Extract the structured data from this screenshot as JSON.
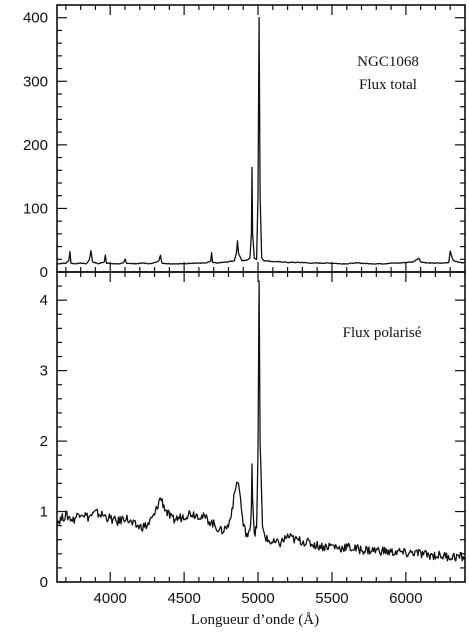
{
  "chart_data": [
    {
      "type": "line",
      "panel": "top",
      "annotation": [
        "NGC1068",
        "Flux total"
      ],
      "xlabel": "",
      "ylabel": "",
      "xlim": [
        3640,
        6400
      ],
      "ylim": [
        0,
        420
      ],
      "x_ticks": [
        4000,
        4500,
        5000,
        5500,
        6000
      ],
      "y_ticks": [
        0,
        100,
        200,
        300,
        400
      ],
      "y_tick_labels": [
        "0",
        "100",
        "200",
        "300",
        "400"
      ],
      "series": [
        {
          "x": [
            3640,
            3700,
            3720,
            3727,
            3735,
            3760,
            3800,
            3840,
            3860,
            3869,
            3880,
            3920,
            3960,
            3967,
            3975,
            4020,
            4060,
            4090,
            4101,
            4110,
            4160,
            4220,
            4280,
            4330,
            4340,
            4350,
            4400,
            4450,
            4500,
            4550,
            4600,
            4650,
            4680,
            4686,
            4692,
            4720,
            4760,
            4800,
            4840,
            4855,
            4861,
            4868,
            4890,
            4920,
            4945,
            4955,
            4959,
            4963,
            4975,
            4990,
            5000,
            5007,
            5014,
            5025,
            5040,
            5080,
            5120,
            5160,
            5200,
            5250,
            5300,
            5350,
            5400,
            5450,
            5500,
            5550,
            5600,
            5650,
            5700,
            5750,
            5800,
            5850,
            5900,
            5950,
            6000,
            6050,
            6087,
            6100,
            6150,
            6200,
            6250,
            6290,
            6300,
            6320,
            6360,
            6400
          ],
          "y": [
            13,
            14,
            18,
            32,
            14,
            13,
            14,
            13,
            20,
            34,
            16,
            13,
            16,
            27,
            14,
            13,
            13,
            14,
            20,
            14,
            13,
            14,
            13,
            18,
            26,
            14,
            13,
            13,
            13,
            14,
            14,
            14,
            17,
            30,
            15,
            14,
            15,
            16,
            18,
            32,
            49,
            30,
            18,
            18,
            22,
            60,
            165,
            60,
            22,
            20,
            120,
            400,
            120,
            22,
            18,
            17,
            16,
            16,
            15,
            15,
            15,
            14,
            14,
            14,
            14,
            13,
            13,
            14,
            14,
            13,
            13,
            13,
            14,
            14,
            15,
            16,
            22,
            16,
            14,
            14,
            14,
            15,
            33,
            18,
            15,
            15
          ]
        }
      ]
    },
    {
      "type": "line",
      "panel": "bottom",
      "annotation": [
        "Flux polarisé"
      ],
      "xlabel": "Longueur d’onde (Å)",
      "ylabel": "",
      "xlim": [
        3640,
        6400
      ],
      "ylim": [
        0,
        4.4
      ],
      "x_ticks": [
        4000,
        4500,
        5000,
        5500,
        6000
      ],
      "x_tick_labels": [
        "4000",
        "4500",
        "5000",
        "5500",
        "6000"
      ],
      "y_ticks": [
        0,
        1,
        2,
        3,
        4
      ],
      "y_tick_labels": [
        "0",
        "1",
        "2",
        "3",
        "4"
      ],
      "series": [
        {
          "x": [
            3640,
            3700,
            3750,
            3800,
            3850,
            3900,
            3950,
            4000,
            4050,
            4101,
            4150,
            4200,
            4250,
            4300,
            4340,
            4380,
            4420,
            4480,
            4540,
            4600,
            4650,
            4700,
            4750,
            4800,
            4830,
            4850,
            4861,
            4875,
            4900,
            4930,
            4945,
            4955,
            4959,
            4963,
            4975,
            4990,
            5000,
            5007,
            5014,
            5030,
            5060,
            5100,
            5150,
            5200,
            5250,
            5300,
            5350,
            5400,
            5450,
            5500,
            5550,
            5600,
            5650,
            5700,
            5750,
            5800,
            5850,
            5900,
            5950,
            6000,
            6050,
            6100,
            6150,
            6200,
            6250,
            6300,
            6350,
            6400
          ],
          "y": [
            0.85,
            0.95,
            0.88,
            1.0,
            0.92,
            0.98,
            0.95,
            0.9,
            0.85,
            0.92,
            0.82,
            0.78,
            0.8,
            0.95,
            1.2,
            1.0,
            0.88,
            0.92,
            0.98,
            0.95,
            0.9,
            0.82,
            0.72,
            0.8,
            1.1,
            1.35,
            1.45,
            1.3,
            0.8,
            0.65,
            0.7,
            1.1,
            1.7,
            1.2,
            0.7,
            0.75,
            1.8,
            4.3,
            2.0,
            0.75,
            0.6,
            0.55,
            0.55,
            0.65,
            0.6,
            0.58,
            0.55,
            0.52,
            0.5,
            0.52,
            0.48,
            0.5,
            0.47,
            0.46,
            0.45,
            0.45,
            0.44,
            0.42,
            0.43,
            0.4,
            0.42,
            0.4,
            0.38,
            0.38,
            0.37,
            0.36,
            0.36,
            0.35
          ]
        }
      ]
    }
  ]
}
